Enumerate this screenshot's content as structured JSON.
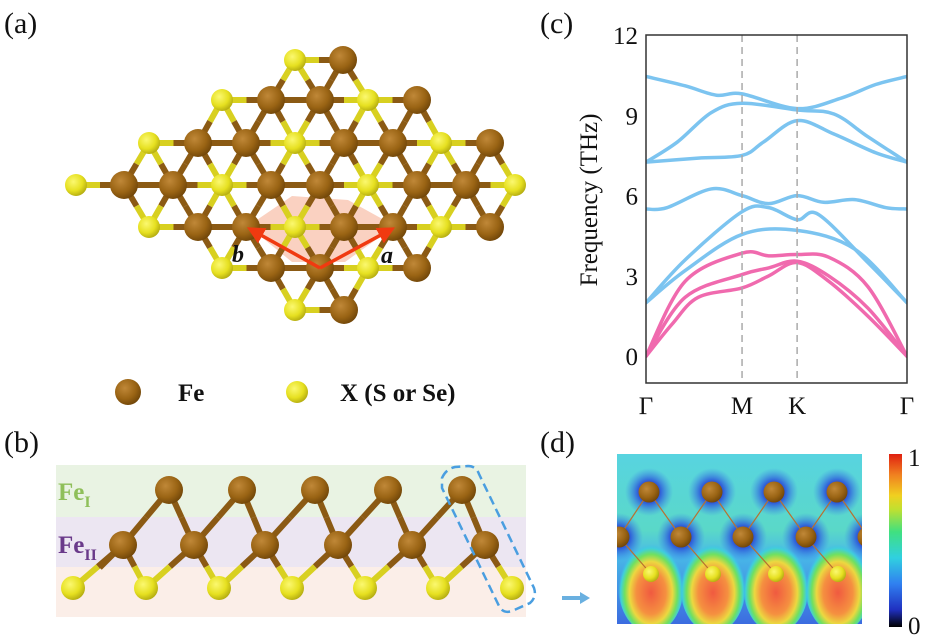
{
  "panels": {
    "a": {
      "label": "(a)",
      "vector_a": "a",
      "vector_b": "b",
      "legend": [
        {
          "label": "Fe",
          "color": "#9a6414"
        },
        {
          "label": "X (S or Se)",
          "color": "#e6e020"
        }
      ]
    },
    "b": {
      "label": "(b)",
      "layer_top": {
        "text": "Fe",
        "sub": "I",
        "color": "#8fbf5a"
      },
      "layer_mid": {
        "text": "Fe",
        "sub": "II",
        "color": "#6a3a8a"
      }
    },
    "c": {
      "label": "(c)"
    },
    "d": {
      "label": "(d)",
      "colorbar_max": "1",
      "colorbar_min": "0"
    }
  },
  "colors": {
    "fe": "#9a6414",
    "x": "#e6e020",
    "optical": "#7cc4f0",
    "acoustic": "#f06aae",
    "arrow": "#f03a10",
    "cell": "#f7b8a0"
  },
  "chart_data": {
    "type": "line",
    "title": "",
    "xlabel": "",
    "ylabel": "Frequency (THz)",
    "ylim": [
      -1,
      12
    ],
    "yticks": [
      0,
      3,
      6,
      9,
      12
    ],
    "grid": false,
    "high_symmetry_points": [
      {
        "label": "Γ",
        "pos": 0
      },
      {
        "label": "M",
        "pos": 0.368
      },
      {
        "label": "K",
        "pos": 0.579
      },
      {
        "label": "Γ",
        "pos": 1
      }
    ],
    "series": [
      {
        "kind": "optical",
        "points": [
          [
            0,
            10.45
          ],
          [
            0.15,
            10.1
          ],
          [
            0.27,
            9.75
          ],
          [
            0.368,
            9.8
          ],
          [
            0.579,
            9.25
          ],
          [
            0.75,
            9.65
          ],
          [
            0.88,
            10.15
          ],
          [
            1,
            10.45
          ]
        ]
      },
      {
        "kind": "optical",
        "points": [
          [
            0,
            7.25
          ],
          [
            0.12,
            8.0
          ],
          [
            0.25,
            9.1
          ],
          [
            0.368,
            9.45
          ],
          [
            0.579,
            9.2
          ],
          [
            0.72,
            9.05
          ],
          [
            0.85,
            8.2
          ],
          [
            1,
            7.25
          ]
        ]
      },
      {
        "kind": "optical",
        "points": [
          [
            0,
            7.25
          ],
          [
            0.2,
            7.4
          ],
          [
            0.368,
            7.5
          ],
          [
            0.45,
            8.0
          ],
          [
            0.579,
            8.8
          ],
          [
            0.72,
            8.3
          ],
          [
            0.88,
            7.6
          ],
          [
            1,
            7.25
          ]
        ]
      },
      {
        "kind": "optical",
        "points": [
          [
            0,
            5.5
          ],
          [
            0.08,
            5.55
          ],
          [
            0.25,
            6.25
          ],
          [
            0.368,
            6.0
          ],
          [
            0.47,
            5.7
          ],
          [
            0.579,
            6.0
          ],
          [
            0.68,
            5.75
          ],
          [
            0.8,
            5.85
          ],
          [
            0.92,
            5.55
          ],
          [
            1,
            5.5
          ]
        ]
      },
      {
        "kind": "optical",
        "points": [
          [
            0,
            2.0
          ],
          [
            0.15,
            3.6
          ],
          [
            0.368,
            5.4
          ],
          [
            0.47,
            5.55
          ],
          [
            0.579,
            5.1
          ],
          [
            0.66,
            5.3
          ],
          [
            0.85,
            3.5
          ],
          [
            1,
            2.0
          ]
        ]
      },
      {
        "kind": "optical",
        "points": [
          [
            0,
            2.0
          ],
          [
            0.15,
            3.2
          ],
          [
            0.368,
            4.55
          ],
          [
            0.579,
            4.7
          ],
          [
            0.8,
            4.0
          ],
          [
            1,
            2.0
          ]
        ]
      },
      {
        "kind": "acoustic",
        "points": [
          [
            0,
            0
          ],
          [
            0.15,
            2.8
          ],
          [
            0.368,
            3.85
          ],
          [
            0.47,
            3.75
          ],
          [
            0.579,
            3.8
          ],
          [
            0.7,
            3.7
          ],
          [
            0.85,
            2.6
          ],
          [
            1,
            0
          ]
        ]
      },
      {
        "kind": "acoustic",
        "points": [
          [
            0,
            0
          ],
          [
            0.15,
            2.2
          ],
          [
            0.368,
            3.05
          ],
          [
            0.47,
            3.3
          ],
          [
            0.579,
            3.55
          ],
          [
            0.7,
            3.0
          ],
          [
            0.85,
            1.8
          ],
          [
            1,
            0
          ]
        ]
      },
      {
        "kind": "acoustic",
        "points": [
          [
            0,
            0
          ],
          [
            0.1,
            1.2
          ],
          [
            0.2,
            2.2
          ],
          [
            0.368,
            2.55
          ],
          [
            0.47,
            3.0
          ],
          [
            0.579,
            3.5
          ],
          [
            0.7,
            2.8
          ],
          [
            0.85,
            1.5
          ],
          [
            1,
            0
          ]
        ]
      }
    ]
  }
}
